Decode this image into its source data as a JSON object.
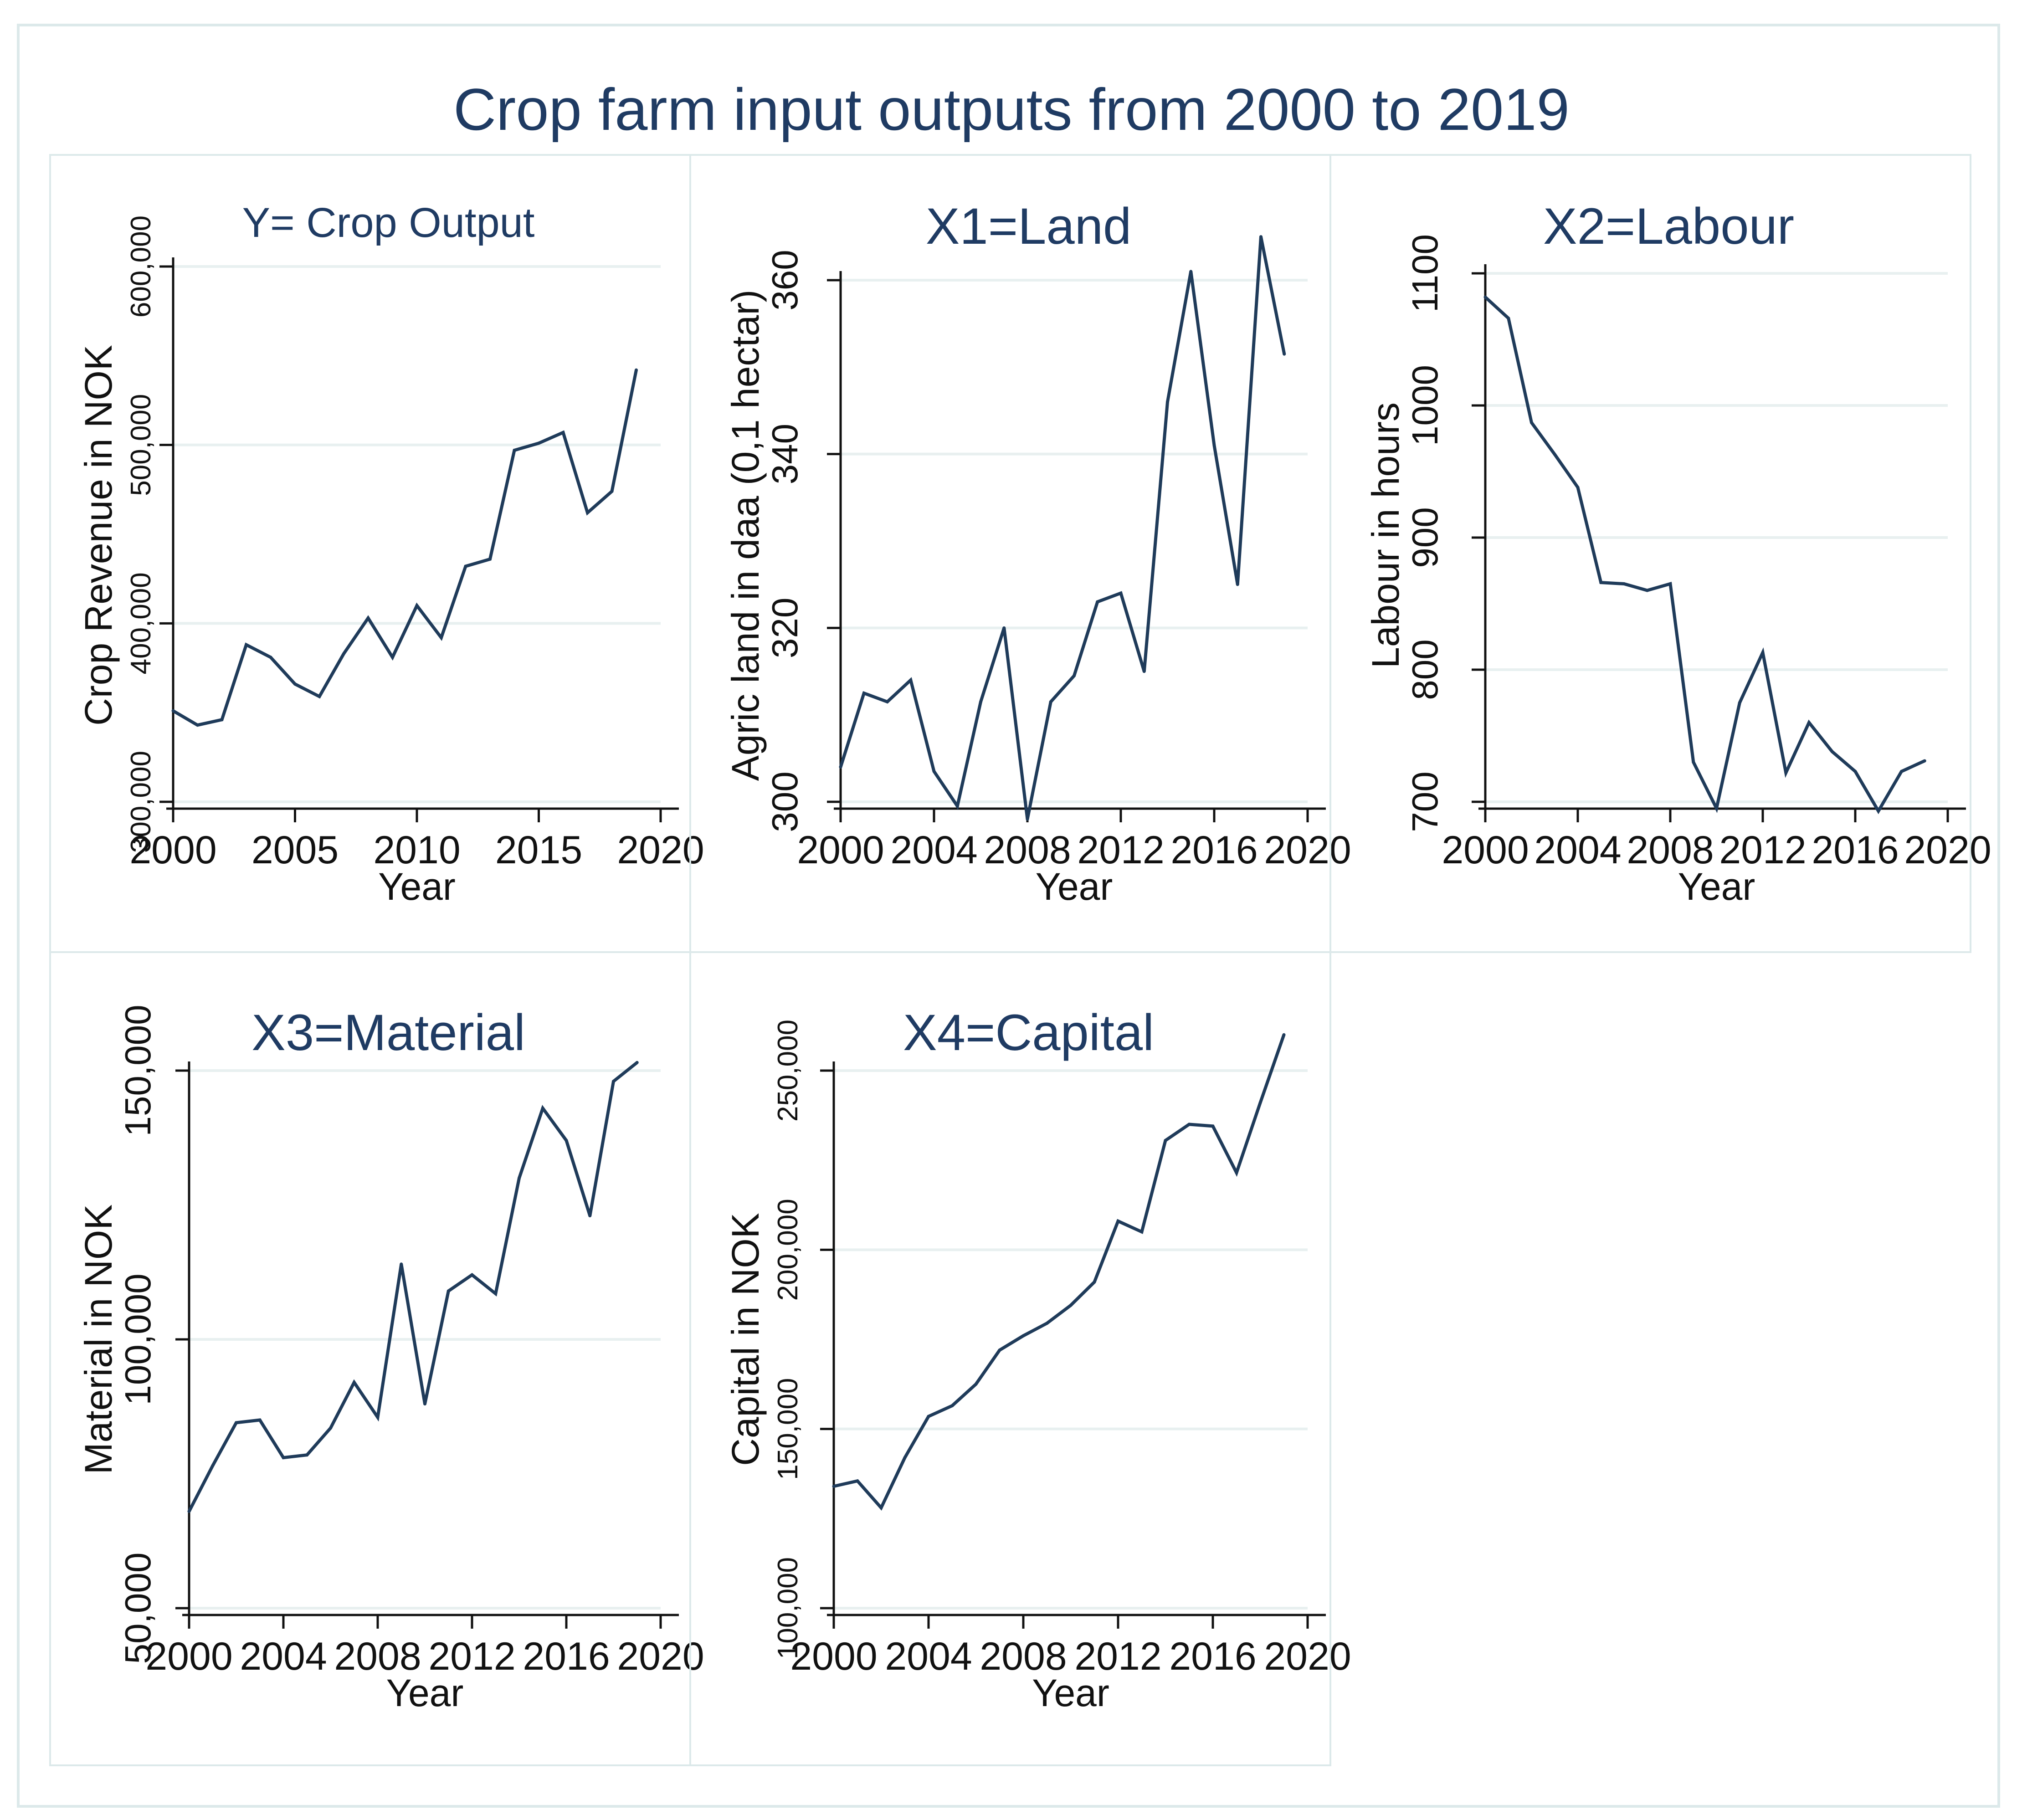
{
  "title": "Crop farm input outputs from 2000 to 2019",
  "colors": {
    "line": "#1f3b5a",
    "grid": "#e8f0f0",
    "axis": "#111111",
    "panel_border": "#dce9ea",
    "title": "#1f3b63"
  },
  "chart_data": [
    {
      "type": "line",
      "title": "Y= Crop Output",
      "xlabel": "Year",
      "ylabel": "Crop Revenue in NOK",
      "xlim": [
        2000,
        2020
      ],
      "ylim": [
        300000,
        600000
      ],
      "xticks": [
        2000,
        2005,
        2010,
        2015,
        2020
      ],
      "xtick_labels": [
        "2000",
        "2005",
        "2010",
        "2015",
        "2020"
      ],
      "yticks": [
        300000,
        400000,
        500000,
        600000
      ],
      "ytick_labels": [
        "300,000",
        "400,000",
        "500,000",
        "600,000"
      ],
      "grid": true,
      "series": [
        {
          "x": [
            2000,
            2001,
            2002,
            2003,
            2004,
            2005,
            2006,
            2007,
            2008,
            2009,
            2010,
            2011,
            2012,
            2013,
            2014,
            2015,
            2016,
            2017,
            2018,
            2019
          ],
          "y": [
            351000,
            343000,
            346000,
            388000,
            381000,
            366000,
            359000,
            383000,
            403000,
            381000,
            410000,
            392000,
            432000,
            436000,
            497000,
            501000,
            507000,
            462000,
            474000,
            542000
          ]
        }
      ]
    },
    {
      "type": "line",
      "title": "X1=Land",
      "xlabel": "Year",
      "ylabel": "Agric land in daa (0,1 hectar)",
      "xlim": [
        2000,
        2020
      ],
      "ylim": [
        300,
        360
      ],
      "xticks": [
        2000,
        2004,
        2008,
        2012,
        2016,
        2020
      ],
      "xtick_labels": [
        "2000",
        "2004",
        "2008",
        "2012",
        "2016",
        "2020"
      ],
      "yticks": [
        300,
        320,
        340,
        360
      ],
      "ytick_labels": [
        "300",
        "320",
        "340",
        "360"
      ],
      "grid": true,
      "series": [
        {
          "x": [
            2000,
            2001,
            2002,
            2003,
            2004,
            2005,
            2006,
            2007,
            2008,
            2009,
            2010,
            2011,
            2012,
            2013,
            2014,
            2015,
            2016,
            2017,
            2018,
            2019
          ],
          "y": [
            304,
            312.5,
            311.5,
            314,
            303.5,
            299.5,
            311.5,
            320,
            298,
            311.5,
            314.5,
            323,
            324,
            315,
            346,
            361,
            341,
            325,
            365,
            351.5
          ]
        }
      ]
    },
    {
      "type": "line",
      "title": "X2=Labour",
      "xlabel": "Year",
      "ylabel": "Labour in hours",
      "xlim": [
        2000,
        2020
      ],
      "ylim": [
        700,
        1100
      ],
      "xticks": [
        2000,
        2004,
        2008,
        2012,
        2016,
        2020
      ],
      "xtick_labels": [
        "2000",
        "2004",
        "2008",
        "2012",
        "2016",
        "2020"
      ],
      "yticks": [
        700,
        800,
        900,
        1000,
        1100
      ],
      "ytick_labels": [
        "700",
        "800",
        "900",
        "1000",
        "1100"
      ],
      "grid": true,
      "series": [
        {
          "x": [
            2000,
            2001,
            2002,
            2003,
            2004,
            2005,
            2006,
            2007,
            2008,
            2009,
            2010,
            2011,
            2012,
            2013,
            2014,
            2015,
            2016,
            2017,
            2018,
            2019
          ],
          "y": [
            1082,
            1066,
            987,
            963,
            938,
            866,
            865,
            860,
            865,
            730,
            695,
            775,
            813,
            722,
            760,
            738,
            723,
            693,
            723,
            731
          ]
        }
      ]
    },
    {
      "type": "line",
      "title": "X3=Material",
      "xlabel": "Year",
      "ylabel": "Material in NOK",
      "xlim": [
        2000,
        2020
      ],
      "ylim": [
        50000,
        150000
      ],
      "xticks": [
        2000,
        2004,
        2008,
        2012,
        2016,
        2020
      ],
      "xtick_labels": [
        "2000",
        "2004",
        "2008",
        "2012",
        "2016",
        "2020"
      ],
      "yticks": [
        50000,
        100000,
        150000
      ],
      "ytick_labels": [
        "50,000",
        "100,000",
        "150,000"
      ],
      "grid": true,
      "series": [
        {
          "x": [
            2000,
            2001,
            2002,
            2003,
            2004,
            2005,
            2006,
            2007,
            2008,
            2009,
            2010,
            2011,
            2012,
            2013,
            2014,
            2015,
            2016,
            2017,
            2018,
            2019
          ],
          "y": [
            68000,
            76500,
            84500,
            85000,
            78000,
            78500,
            83500,
            92000,
            85500,
            114000,
            88000,
            109000,
            112000,
            108500,
            130000,
            143000,
            137000,
            123000,
            148000,
            151500
          ]
        }
      ]
    },
    {
      "type": "line",
      "title": "X4=Capital",
      "xlabel": "Year",
      "ylabel": "Capital in NOK",
      "xlim": [
        2000,
        2020
      ],
      "ylim": [
        100000,
        250000
      ],
      "xticks": [
        2000,
        2004,
        2008,
        2012,
        2016,
        2020
      ],
      "xtick_labels": [
        "2000",
        "2004",
        "2008",
        "2012",
        "2016",
        "2020"
      ],
      "yticks": [
        100000,
        150000,
        200000,
        250000
      ],
      "ytick_labels": [
        "100,000",
        "150,000",
        "200,000",
        "250,000"
      ],
      "grid": true,
      "series": [
        {
          "x": [
            2000,
            2001,
            2002,
            2003,
            2004,
            2005,
            2006,
            2007,
            2008,
            2009,
            2010,
            2011,
            2012,
            2013,
            2014,
            2015,
            2016,
            2017,
            2018,
            2019
          ],
          "y": [
            134000,
            135500,
            128000,
            142000,
            153500,
            156500,
            162500,
            172000,
            176000,
            179500,
            184500,
            191000,
            208000,
            205000,
            230500,
            235000,
            234500,
            221500,
            241000,
            260000
          ]
        }
      ]
    }
  ]
}
